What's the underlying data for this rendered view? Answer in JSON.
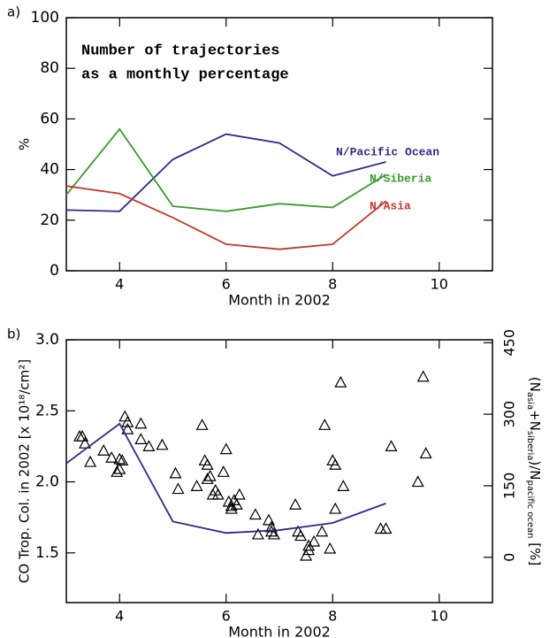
{
  "chart_data": [
    {
      "type": "line",
      "panel_label": "a)",
      "annotation": [
        "Number of trajectories",
        "as a monthly percentage"
      ],
      "xlabel": "Month in 2002",
      "ylabel": "%",
      "xlim": [
        3,
        11
      ],
      "xticks": [
        4,
        6,
        8,
        10
      ],
      "ylim": [
        0,
        100
      ],
      "yticks": [
        0,
        20,
        40,
        60,
        80,
        100
      ],
      "x": [
        3,
        4,
        5,
        6,
        7,
        8,
        9
      ],
      "series": [
        {
          "name": "N/Pacific Ocean",
          "color": "#2e2a8a",
          "values": [
            24,
            23.5,
            44,
            54,
            50.5,
            37.5,
            43
          ]
        },
        {
          "name": "N/Siberia",
          "color": "#3a9a2e",
          "values": [
            30,
            56,
            25.5,
            23.5,
            26.5,
            25,
            38
          ]
        },
        {
          "name": "N/Asia",
          "color": "#c0392b",
          "values": [
            33.5,
            30.5,
            21,
            10.5,
            8.5,
            10.5,
            27.5
          ]
        }
      ]
    },
    {
      "type": "scatter",
      "panel_label": "b)",
      "xlabel": "Month in 2002",
      "ylabel": "CO Trop. Col. in 2002 [x 10¹⁸/cm²]",
      "y2label": [
        "(N",
        "asia",
        "+N",
        "siberia",
        ")/N",
        "pacific ocean",
        " [%]"
      ],
      "xlim": [
        3,
        11
      ],
      "xticks": [
        4,
        6,
        8,
        10
      ],
      "ylim": [
        1.15,
        3.0
      ],
      "yticks": [
        1.5,
        {
          "value": 2,
          "label": "2.0"
        },
        2.5,
        {
          "value": 3,
          "label": "3.0"
        }
      ],
      "y2lim": [
        -95,
        456
      ],
      "y2ticks": [
        0,
        150,
        300,
        450
      ],
      "series": [
        {
          "marker": "triangle",
          "color": "#000000",
          "x": [
            3.25,
            3.3,
            3.35,
            3.45,
            3.7,
            3.85,
            3.95,
            4.0,
            4.0,
            4.05,
            4.1,
            4.15,
            4.15,
            4.4,
            4.4,
            4.55,
            4.8,
            5.05,
            5.1,
            5.45,
            5.55,
            5.6,
            5.65,
            5.65,
            5.7,
            5.8,
            5.75,
            5.85,
            5.95,
            6.0,
            6.05,
            6.1,
            6.1,
            6.15,
            6.2,
            6.25,
            6.55,
            6.6,
            6.8,
            6.85,
            6.85,
            6.9,
            7.3,
            7.35,
            7.4,
            7.5,
            7.55,
            7.55,
            7.65,
            7.8,
            7.85,
            7.95,
            8.0,
            8.05,
            8.05,
            8.15,
            8.2,
            8.9,
            9.0,
            9.1,
            9.6,
            9.7,
            9.75
          ],
          "values": [
            2.32,
            2.32,
            2.27,
            2.14,
            2.22,
            2.17,
            2.07,
            2.09,
            2.16,
            2.15,
            2.46,
            2.42,
            2.37,
            2.41,
            2.3,
            2.25,
            2.26,
            2.06,
            1.95,
            1.97,
            2.4,
            2.15,
            2.12,
            2.02,
            2.04,
            1.94,
            1.91,
            1.91,
            2.07,
            2.23,
            1.86,
            1.83,
            1.81,
            1.87,
            1.84,
            1.91,
            1.77,
            1.63,
            1.73,
            1.68,
            1.65,
            1.63,
            1.84,
            1.65,
            1.62,
            1.48,
            1.52,
            1.55,
            1.58,
            1.65,
            2.4,
            1.53,
            2.15,
            2.12,
            1.81,
            2.7,
            1.97,
            1.67,
            1.67,
            2.25,
            2.0,
            2.74,
            2.2
          ]
        },
        {
          "marker": "line",
          "axis": "y2",
          "color": "#2e2a8a",
          "x": [
            3,
            4,
            5,
            6,
            7,
            8,
            9
          ],
          "values": [
            197,
            280,
            75,
            51,
            57,
            72,
            113
          ]
        }
      ]
    }
  ]
}
